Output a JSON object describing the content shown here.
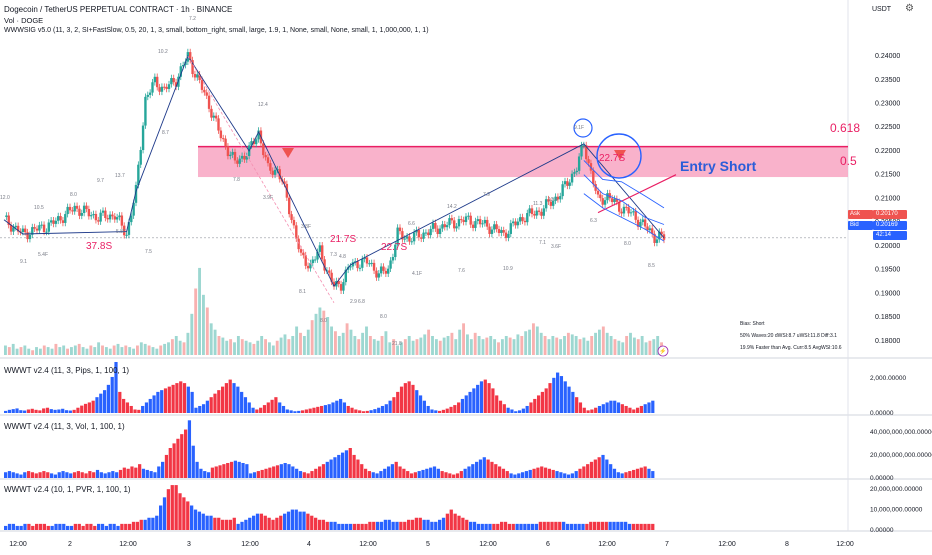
{
  "header": {
    "symbol": "Dogecoin / TetherUS PERPETUAL CONTRACT · 1h · BINANCE",
    "vol_label": "Vol · DOGE",
    "indicator": "WWWSIG v5.0 (11, 3, 2, SI+FastSlow, 0.5, 20, 1, 3, small, bottom_right, small, large, 1.9, 1, None, small, None, small, 1, 1,000,000, 1, 1)",
    "currency": "USDT"
  },
  "icons": {
    "settings": "gear-icon",
    "alert": "lightning-icon"
  },
  "annotations": {
    "fib_618": "0.618",
    "fib_05": "0.5",
    "entry": "Entry Short",
    "bias": [
      "Bias: Short",
      "50% Waves:20 dWSI:8.7 uWSI:11.8 Diff:3.1",
      "19.9% Faster than Avg. Curr:8.5 AvgWSI:10.6"
    ],
    "pink_labels": [
      "37.8S",
      "21.7S",
      "22.7S",
      "22.7S"
    ],
    "wave_labels": [
      "12.0",
      "10.5",
      "9.1",
      "5.4F",
      "8.0",
      "9.7",
      "13.7",
      "5.8F",
      "7.5",
      "8.7",
      "10.2",
      "7.2",
      "7.8",
      "12.4",
      "3.9F",
      "3.8F",
      "8.1",
      "8.0",
      "7.3",
      "4.8",
      "2.9",
      "6.8",
      "8.0",
      "21.8",
      "6.6",
      "4.1F",
      "14.2",
      "7.6",
      "7.9",
      "10.9",
      "11.3",
      "13.4",
      "7.1",
      "3.6F",
      "9.1F",
      "6.3",
      "8.0",
      "8.5"
    ]
  },
  "price_tags": {
    "ask_label": "Ask",
    "ask_value": "0.20170",
    "bid_label": "Bid",
    "bid_value": "0.20169",
    "countdown": "42:14"
  },
  "colors": {
    "up": "#26a69a",
    "down": "#ef5350",
    "wwwt_up": "#2962ff",
    "wwwt_down": "#f23645",
    "zone": "#f8a5c2",
    "zone_line": "#e91e63",
    "entry": "#2b5dd8"
  },
  "chart_data": [
    {
      "type": "candlestick",
      "title": "Dogecoin / TetherUS PERPETUAL CONTRACT · 1h · BINANCE",
      "y_ticks": [
        "0.24000",
        "0.23500",
        "0.23000",
        "0.22500",
        "0.22000",
        "0.21500",
        "0.21000",
        "0.20500",
        "0.20000",
        "0.19500",
        "0.19000",
        "0.18500",
        "0.18000"
      ],
      "ylim": [
        0.177,
        0.2438
      ],
      "x_ticks": [
        "12:00",
        "2",
        "12:00",
        "3",
        "12:00",
        "4",
        "12:00",
        "5",
        "12:00",
        "6",
        "12:00",
        "7",
        "12:00",
        "8",
        "12:00"
      ],
      "zone": {
        "top": 0.2209,
        "bottom": 0.2145
      },
      "close_price": 0.2017,
      "close_path": [
        [
          0,
          0.2055
        ],
        [
          8,
          0.2025
        ],
        [
          20,
          0.2045
        ],
        [
          30,
          0.208
        ],
        [
          40,
          0.206
        ],
        [
          47,
          0.2065
        ],
        [
          52,
          0.2025
        ],
        [
          56,
          0.2115
        ],
        [
          60,
          0.231
        ],
        [
          64,
          0.2345
        ],
        [
          68,
          0.233
        ],
        [
          73,
          0.235
        ],
        [
          78,
          0.24
        ],
        [
          80,
          0.2375
        ],
        [
          86,
          0.231
        ],
        [
          92,
          0.223
        ],
        [
          98,
          0.2175
        ],
        [
          104,
          0.22
        ],
        [
          108,
          0.224
        ],
        [
          112,
          0.216
        ],
        [
          116,
          0.216
        ],
        [
          118,
          0.2135
        ],
        [
          122,
          0.206
        ],
        [
          126,
          0.1975
        ],
        [
          130,
          0.196
        ],
        [
          134,
          0.199
        ],
        [
          138,
          0.1935
        ],
        [
          140,
          0.1915
        ],
        [
          143,
          0.192
        ],
        [
          147,
          0.196
        ],
        [
          151,
          0.1965
        ],
        [
          155,
          0.1965
        ],
        [
          159,
          0.194
        ],
        [
          163,
          0.195
        ],
        [
          167,
          0.2025
        ],
        [
          172,
          0.2015
        ],
        [
          180,
          0.203
        ],
        [
          188,
          0.2045
        ],
        [
          196,
          0.2055
        ],
        [
          204,
          0.2045
        ],
        [
          212,
          0.2025
        ],
        [
          220,
          0.206
        ],
        [
          228,
          0.2075
        ],
        [
          236,
          0.211
        ],
        [
          243,
          0.2165
        ],
        [
          246,
          0.2215
        ],
        [
          249,
          0.2155
        ],
        [
          252,
          0.2095
        ],
        [
          256,
          0.2105
        ],
        [
          260,
          0.2085
        ],
        [
          264,
          0.2075
        ],
        [
          268,
          0.206
        ],
        [
          272,
          0.204
        ],
        [
          276,
          0.202
        ],
        [
          280,
          0.2017
        ]
      ],
      "volume": [
        6,
        5,
        7,
        4,
        5,
        6,
        4,
        3,
        5,
        4,
        6,
        5,
        4,
        7,
        5,
        6,
        4,
        5,
        6,
        7,
        5,
        4,
        6,
        5,
        8,
        6,
        5,
        4,
        6,
        7,
        5,
        6,
        5,
        4,
        6,
        8,
        7,
        6,
        5,
        4,
        6,
        7,
        8,
        10,
        12,
        9,
        8,
        14,
        26,
        42,
        55,
        38,
        30,
        20,
        16,
        12,
        11,
        9,
        10,
        8,
        12,
        10,
        9,
        8,
        7,
        9,
        12,
        10,
        8,
        6,
        9,
        11,
        13,
        10,
        12,
        18,
        14,
        12,
        16,
        22,
        26,
        30,
        28,
        24,
        18,
        15,
        12,
        14,
        20,
        16,
        12,
        10,
        14,
        18,
        12,
        10,
        9,
        12,
        15,
        8,
        10,
        6,
        8,
        10,
        12,
        9,
        10,
        11,
        13,
        16,
        12,
        10,
        9,
        11,
        12,
        14,
        10,
        16,
        20,
        13,
        10,
        14,
        12,
        10,
        11,
        12,
        10,
        8,
        10,
        12,
        11,
        10,
        13,
        12,
        15,
        16,
        20,
        18,
        14,
        12,
        10,
        12,
        11,
        10,
        12,
        14,
        13,
        12,
        10,
        11,
        9,
        12,
        14,
        16,
        18,
        14,
        12,
        10,
        9,
        8,
        12,
        14,
        11,
        10,
        12,
        8,
        9,
        10,
        12,
        8
      ],
      "volume_ylim": [
        0,
        60
      ]
    },
    {
      "type": "bar",
      "title": "WWWT v2.4 (11, 3, Pips, 1, 100, 1)",
      "y_ticks": [
        "2,000.00000",
        "0.00000"
      ],
      "ylim": [
        0,
        2900
      ],
      "values": [
        120,
        180,
        220,
        260,
        160,
        140,
        200,
        240,
        180,
        150,
        260,
        300,
        220,
        180,
        200,
        240,
        160,
        140,
        180,
        300,
        420,
        520,
        600,
        700,
        900,
        1100,
        1300,
        1600,
        2050,
        2900,
        1200,
        800,
        600,
        400,
        200,
        180,
        400,
        600,
        800,
        1000,
        1200,
        1300,
        1400,
        1500,
        1600,
        1700,
        1800,
        1700,
        1500,
        1200,
        300,
        400,
        500,
        700,
        900,
        1100,
        1300,
        1500,
        1700,
        1900,
        1700,
        1500,
        1200,
        900,
        600,
        300,
        200,
        300,
        450,
        600,
        750,
        900,
        600,
        400,
        200,
        150,
        100,
        120,
        150,
        200,
        250,
        300,
        350,
        400,
        450,
        500,
        600,
        700,
        800,
        600,
        400,
        300,
        200,
        150,
        100,
        120,
        160,
        220,
        300,
        400,
        500,
        700,
        900,
        1200,
        1500,
        1700,
        1800,
        1600,
        1300,
        1000,
        700,
        400,
        200,
        150,
        120,
        180,
        250,
        350,
        450,
        600,
        800,
        1000,
        1200,
        1400,
        1600,
        1800,
        1900,
        1700,
        1400,
        1000,
        700,
        500,
        300,
        200,
        100,
        150,
        250,
        400,
        600,
        800,
        1000,
        1200,
        1400,
        1700,
        2000,
        2300,
        2100,
        1800,
        1500,
        1200,
        900,
        600,
        300,
        150,
        200,
        300,
        400,
        500,
        600,
        700,
        700,
        600,
        500,
        400,
        300,
        200,
        300,
        400,
        500,
        600,
        700
      ]
    },
    {
      "type": "bar",
      "title": "WWWT v2.4 (11, 3, Vol, 1, 100, 1)",
      "y_ticks": [
        "40,000,000,000.00000",
        "20,000,000,000.00000",
        "0.00000"
      ],
      "ylim": [
        0,
        52000000000
      ],
      "values": [
        5,
        6,
        5,
        4,
        3,
        5,
        6,
        5,
        4,
        5,
        6,
        5,
        4,
        3,
        5,
        6,
        5,
        4,
        5,
        6,
        5,
        4,
        6,
        5,
        7,
        5,
        4,
        5,
        6,
        5,
        7,
        9,
        8,
        10,
        9,
        12,
        8,
        7,
        6,
        5,
        10,
        14,
        20,
        26,
        30,
        34,
        38,
        42,
        50,
        28,
        14,
        8,
        6,
        5,
        9,
        10,
        11,
        12,
        13,
        14,
        15,
        14,
        13,
        12,
        4,
        5,
        6,
        7,
        8,
        9,
        10,
        11,
        12,
        13,
        12,
        10,
        8,
        6,
        5,
        4,
        6,
        8,
        10,
        12,
        14,
        16,
        18,
        20,
        22,
        24,
        26,
        20,
        16,
        12,
        8,
        6,
        5,
        4,
        6,
        8,
        10,
        12,
        14,
        10,
        8,
        6,
        4,
        5,
        6,
        7,
        8,
        9,
        10,
        8,
        6,
        5,
        4,
        3,
        4,
        6,
        8,
        10,
        12,
        14,
        16,
        18,
        16,
        14,
        12,
        10,
        8,
        6,
        4,
        3,
        4,
        5,
        6,
        7,
        8,
        9,
        10,
        9,
        8,
        7,
        6,
        5,
        4,
        3,
        4,
        6,
        8,
        10,
        12,
        14,
        16,
        18,
        20,
        16,
        12,
        8,
        5,
        4,
        5,
        6,
        7,
        8,
        9,
        10,
        8,
        6
      ]
    },
    {
      "type": "bar",
      "title": "WWWT v2.4 (10, 1, PVR, 1, 100, 1)",
      "y_ticks": [
        "20,000,000.00000",
        "10,000,000.00000",
        "0.00000"
      ],
      "ylim": [
        0,
        24000000
      ],
      "values": [
        2,
        3,
        3,
        2,
        2,
        3,
        3,
        2,
        3,
        3,
        3,
        2,
        2,
        3,
        3,
        3,
        2,
        2,
        3,
        3,
        2,
        3,
        3,
        2,
        3,
        3,
        2,
        3,
        3,
        2,
        3,
        3,
        3,
        4,
        4,
        5,
        5,
        6,
        6,
        7,
        12,
        16,
        20,
        22,
        22,
        18,
        16,
        14,
        12,
        10,
        9,
        8,
        7,
        7,
        6,
        6,
        5,
        5,
        5,
        6,
        3,
        4,
        5,
        6,
        7,
        8,
        8,
        7,
        6,
        5,
        6,
        7,
        8,
        9,
        10,
        10,
        9,
        9,
        8,
        7,
        6,
        5,
        5,
        4,
        4,
        4,
        3,
        3,
        3,
        3,
        3,
        3,
        3,
        3,
        4,
        4,
        4,
        4,
        5,
        5,
        4,
        4,
        4,
        4,
        5,
        5,
        6,
        6,
        5,
        5,
        4,
        4,
        5,
        6,
        8,
        10,
        8,
        7,
        6,
        5,
        4,
        4,
        3,
        3,
        3,
        3,
        3,
        3,
        4,
        4,
        3,
        3,
        3,
        3,
        3,
        3,
        3,
        3,
        4,
        4,
        4,
        4,
        4,
        4,
        4,
        3,
        3,
        3,
        3,
        3,
        3,
        4,
        4,
        4,
        4,
        4,
        4,
        4,
        4,
        4,
        4,
        3,
        3,
        3,
        3,
        3,
        3,
        3
      ]
    }
  ]
}
